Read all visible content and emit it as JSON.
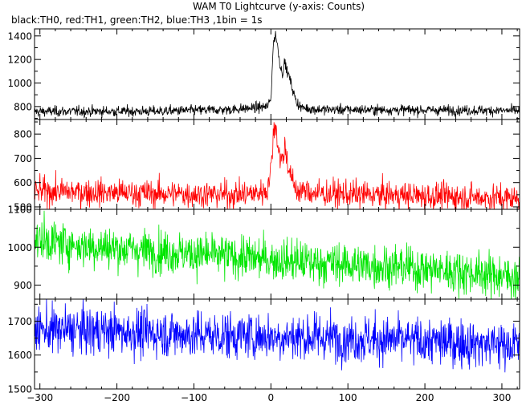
{
  "chart_data": {
    "type": "line",
    "title": "WAM T0 Lightcurve (y-axis: Counts)",
    "legend_text": "black:TH0, red:TH1, green:TH2, blue:TH3 ,1bin = 1s",
    "xlabel": "",
    "ylabel": "",
    "xlim": [
      -307,
      323
    ],
    "x_ticks": [
      -300,
      -200,
      -100,
      0,
      100,
      200,
      300
    ],
    "x_tick_labels": [
      "-300",
      "-200",
      "-100",
      "0",
      "100",
      "200",
      "300"
    ],
    "grid": false,
    "panels": [
      {
        "name": "TH0",
        "color": "#000000",
        "ylim": [
          690,
          1460
        ],
        "y_ticks": [
          800,
          1000,
          1200,
          1400
        ],
        "y_tick_labels": [
          "800",
          "1000",
          "1200",
          "1400"
        ],
        "shape": [
          [
            -307,
            758
          ],
          [
            -150,
            760
          ],
          [
            -50,
            775
          ],
          [
            -20,
            790
          ],
          [
            -5,
            800
          ],
          [
            0,
            860
          ],
          [
            3,
            1320
          ],
          [
            6,
            1420
          ],
          [
            9,
            1300
          ],
          [
            12,
            1150
          ],
          [
            15,
            1080
          ],
          [
            18,
            1180
          ],
          [
            21,
            1100
          ],
          [
            24,
            1050
          ],
          [
            28,
            950
          ],
          [
            33,
            840
          ],
          [
            40,
            790
          ],
          [
            60,
            775
          ],
          [
            200,
            770
          ],
          [
            323,
            765
          ]
        ],
        "noise": 22
      },
      {
        "name": "TH1",
        "color": "#ff0000",
        "ylim": [
          490,
          860
        ],
        "y_ticks": [
          500,
          600,
          700,
          800
        ],
        "y_tick_labels": [
          "500",
          "600",
          "700",
          "800"
        ],
        "shape": [
          [
            -307,
            565
          ],
          [
            -150,
            555
          ],
          [
            -50,
            550
          ],
          [
            -20,
            555
          ],
          [
            -5,
            570
          ],
          [
            0,
            650
          ],
          [
            3,
            790
          ],
          [
            6,
            850
          ],
          [
            9,
            760
          ],
          [
            12,
            700
          ],
          [
            15,
            690
          ],
          [
            18,
            750
          ],
          [
            21,
            700
          ],
          [
            24,
            650
          ],
          [
            28,
            600
          ],
          [
            33,
            570
          ],
          [
            60,
            555
          ],
          [
            200,
            545
          ],
          [
            323,
            535
          ]
        ],
        "noise": 28
      },
      {
        "name": "TH2",
        "color": "#00e600",
        "ylim": [
          863,
          1100
        ],
        "y_ticks": [
          900,
          1000,
          1100
        ],
        "y_tick_labels": [
          "900",
          "1000",
          "1100"
        ],
        "shape": [
          [
            -307,
            1020
          ],
          [
            -250,
            1005
          ],
          [
            -150,
            990
          ],
          [
            -50,
            975
          ],
          [
            50,
            960
          ],
          [
            150,
            950
          ],
          [
            250,
            935
          ],
          [
            323,
            920
          ]
        ],
        "noise": 28
      },
      {
        "name": "TH3",
        "color": "#0000ff",
        "ylim": [
          1500,
          1765
        ],
        "y_ticks": [
          1500,
          1600,
          1700
        ],
        "y_tick_labels": [
          "1500",
          "1600",
          "1700"
        ],
        "shape": [
          [
            -307,
            1675
          ],
          [
            -200,
            1670
          ],
          [
            -100,
            1660
          ],
          [
            0,
            1655
          ],
          [
            100,
            1650
          ],
          [
            200,
            1640
          ],
          [
            323,
            1630
          ]
        ],
        "noise": 35
      }
    ]
  }
}
